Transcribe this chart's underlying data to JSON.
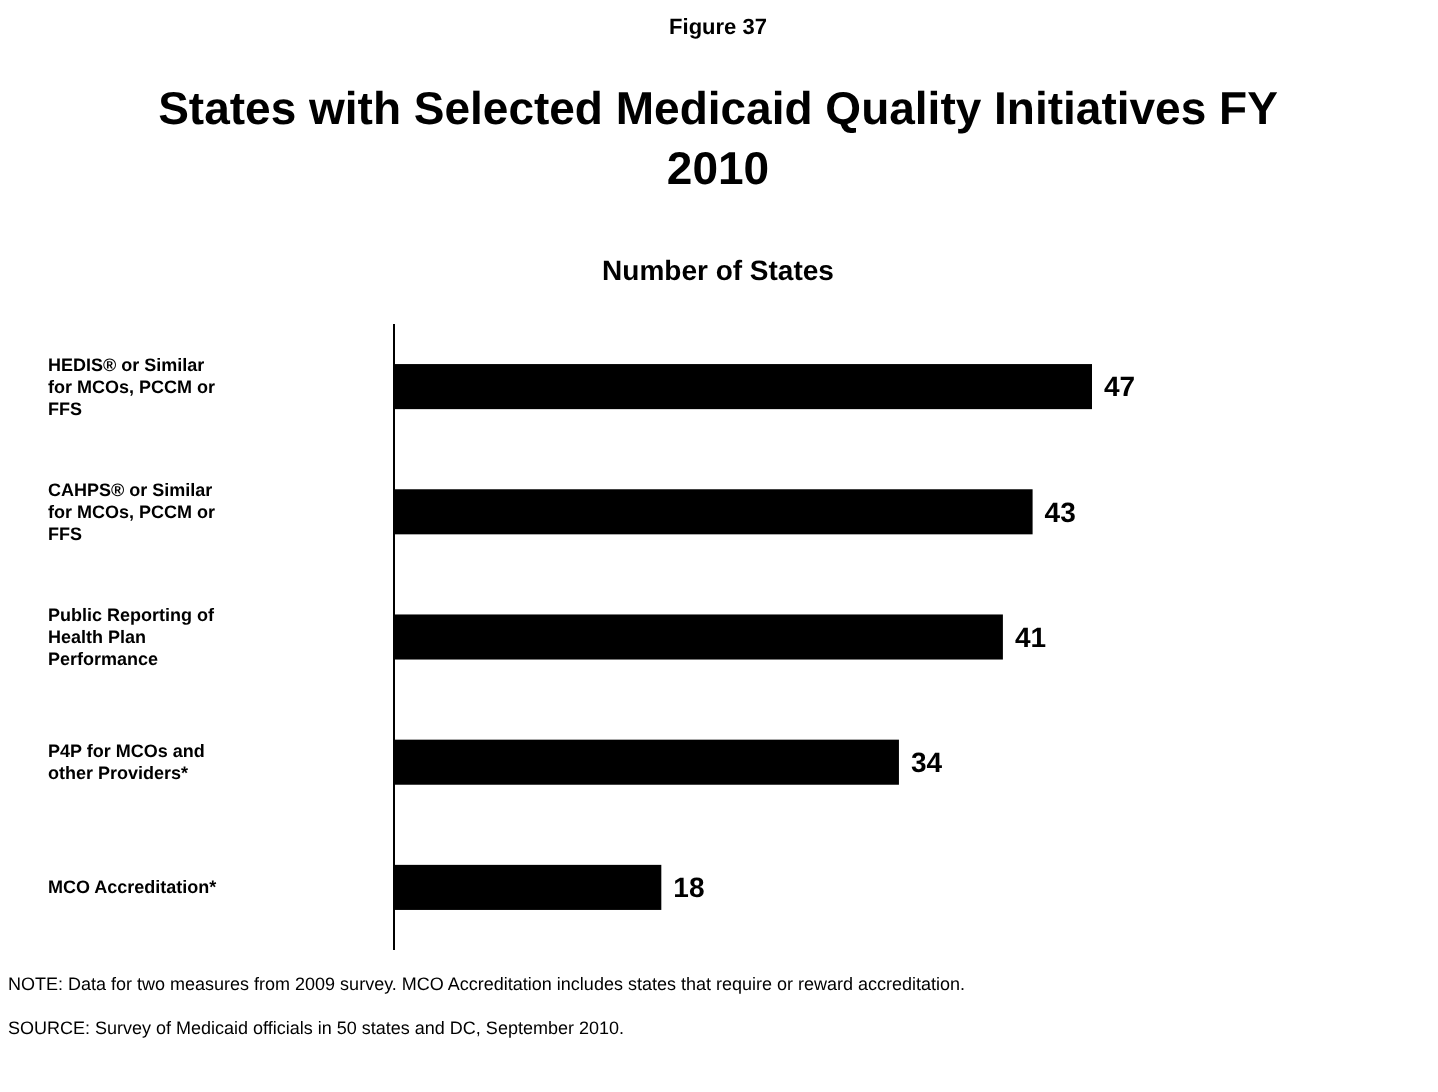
{
  "chart_data": {
    "type": "bar",
    "orientation": "horizontal",
    "title": "States with Selected Medicaid Quality Initiatives FY 2010",
    "subtitle": "Number of States",
    "categories": [
      "HEDIS® or Similar for MCOs, PCCM or FFS",
      "CAHPS® or Similar for MCOs, PCCM or FFS",
      "Public Reporting of Health Plan Performance",
      "P4P for MCOs and other Providers*",
      "MCO Accreditation*"
    ],
    "values": [
      47,
      43,
      41,
      34,
      18
    ],
    "color": "#000000",
    "data_labels": true,
    "tick_labels": "y",
    "annotations": [
      "Figure 37",
      "NOTE: Data for two measures from 2009 survey.   MCO Accreditation includes states that require or reward accreditation.",
      "SOURCE: Survey of Medicaid officials in 50 states and DC, September 2010."
    ]
  }
}
